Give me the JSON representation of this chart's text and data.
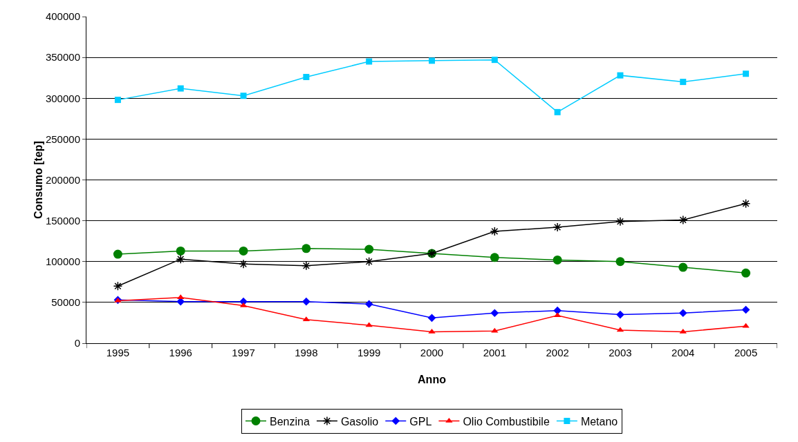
{
  "chart_data": {
    "type": "line",
    "xlabel": "Anno",
    "ylabel": "Consumo [tep]",
    "categories": [
      "1995",
      "1996",
      "1997",
      "1998",
      "1999",
      "2000",
      "2001",
      "2002",
      "2003",
      "2004",
      "2005"
    ],
    "series": [
      {
        "name": "Benzina",
        "color": "#008000",
        "marker": "circle",
        "values": [
          109000,
          113000,
          113000,
          116000,
          115000,
          110000,
          105000,
          102000,
          100000,
          93000,
          86000
        ]
      },
      {
        "name": "Gasolio",
        "color": "#000000",
        "marker": "cross",
        "values": [
          70000,
          103000,
          97000,
          95000,
          100000,
          110000,
          137000,
          142000,
          149000,
          151000,
          171000
        ]
      },
      {
        "name": "GPL",
        "color": "#0000ff",
        "marker": "diamond",
        "values": [
          53000,
          51000,
          51000,
          51000,
          48000,
          31000,
          37000,
          40000,
          35000,
          37000,
          41000
        ]
      },
      {
        "name": "Olio Combustibile",
        "color": "#ff0000",
        "marker": "triangle",
        "values": [
          52000,
          56000,
          46000,
          29000,
          22000,
          14000,
          15000,
          34000,
          16000,
          14000,
          21000
        ]
      },
      {
        "name": "Metano",
        "color": "#00ccff",
        "marker": "square",
        "values": [
          298000,
          312000,
          303000,
          326000,
          345000,
          346000,
          347000,
          283000,
          328000,
          320000,
          330000
        ]
      }
    ],
    "ylim": [
      0,
      400000
    ],
    "yticks": [
      0,
      50000,
      100000,
      150000,
      200000,
      250000,
      300000,
      350000,
      400000
    ],
    "grid": "y",
    "legend": "bottom",
    "line_style": "solid"
  }
}
